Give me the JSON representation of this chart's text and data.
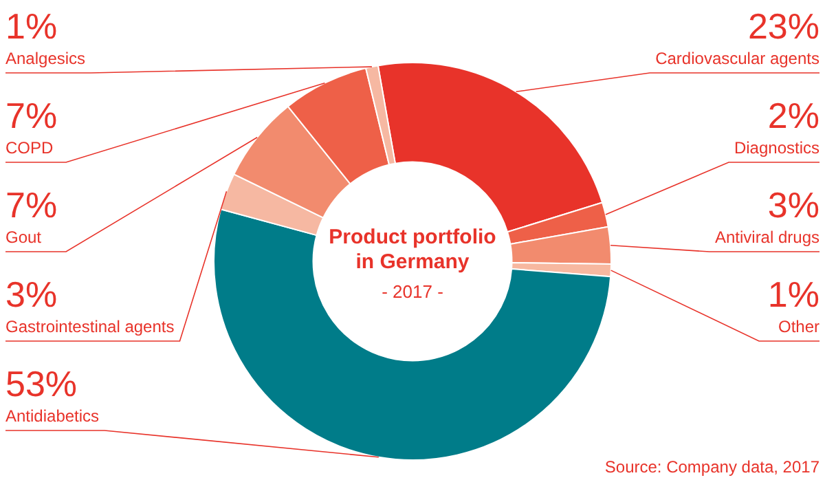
{
  "chart_data": {
    "type": "donut",
    "title": "Product portfolio in Germany",
    "subtitle": "- 2017 -",
    "categories": [
      "Cardiovascular agents",
      "Diagnostics",
      "Antiviral drugs",
      "Other",
      "Antidiabetics",
      "Gastrointestinal agents",
      "Gout",
      "COPD",
      "Analgesics"
    ],
    "values": [
      23,
      2,
      3,
      1,
      53,
      3,
      7,
      7,
      1
    ],
    "value_labels": [
      "23%",
      "2%",
      "3%",
      "1%",
      "53%",
      "3%",
      "7%",
      "7%",
      "1%"
    ],
    "colors": [
      "#e8332a",
      "#ee6048",
      "#f28b6e",
      "#f7b8a0",
      "#007c89",
      "#f6b8a2",
      "#f28b6e",
      "#ee6048",
      "#f6b8a2"
    ],
    "legend": false,
    "annotations": [
      "Source: Company data, 2017"
    ]
  }
}
